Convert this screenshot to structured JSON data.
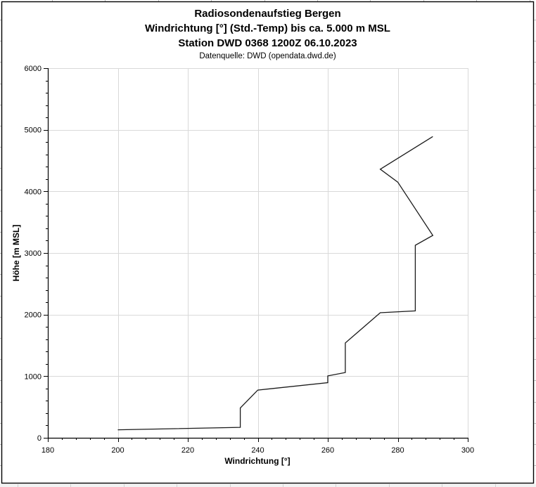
{
  "header": {
    "title_line1": "Radiosondenaufstieg Bergen",
    "title_line2": "Windrichtung [°] (Std.-Temp) bis ca. 5.000 m MSL",
    "title_line3": "Station DWD 0368 1200Z 06.10.2023",
    "source_line": "Datenquelle: DWD (opendata.dwd.de)"
  },
  "colors": {
    "text": "#000000",
    "axis": "#000000",
    "gridline": "#d9d9d9",
    "series_line": "#1a1a1a",
    "chart_border": "#000000",
    "worksheet_stub": "#bdbdbd",
    "worksheet_band": "#f2f2f2",
    "worksheet_band_line": "#d0d0d0"
  },
  "chart_data": {
    "type": "line",
    "title": "Radiosondenaufstieg Bergen",
    "subtitle": "Windrichtung [°] (Std.-Temp) bis ca. 5.000 m MSL",
    "station": "Station DWD 0368 1200Z 06.10.2023",
    "source": "Datenquelle: DWD (opendata.dwd.de)",
    "xlabel": "Windrichtung [°]",
    "ylabel": "Höhe [m MSL]",
    "xlim": [
      180,
      300
    ],
    "ylim": [
      0,
      6000
    ],
    "x_ticks": [
      180,
      200,
      220,
      240,
      260,
      280,
      300
    ],
    "y_ticks": [
      0,
      1000,
      2000,
      3000,
      4000,
      5000,
      6000
    ],
    "x_minor_step": 4,
    "y_minor_step": 200,
    "grid": true,
    "legend": "none",
    "series": [
      {
        "name": "Windrichtung",
        "points": [
          [
            200,
            130
          ],
          [
            235,
            170
          ],
          [
            235,
            485
          ],
          [
            240,
            775
          ],
          [
            260,
            895
          ],
          [
            260,
            1005
          ],
          [
            265,
            1060
          ],
          [
            265,
            1540
          ],
          [
            275,
            2030
          ],
          [
            285,
            2060
          ],
          [
            285,
            3125
          ],
          [
            290,
            3285
          ],
          [
            280,
            4150
          ],
          [
            275,
            4360
          ],
          [
            290,
            4890
          ]
        ]
      }
    ]
  }
}
